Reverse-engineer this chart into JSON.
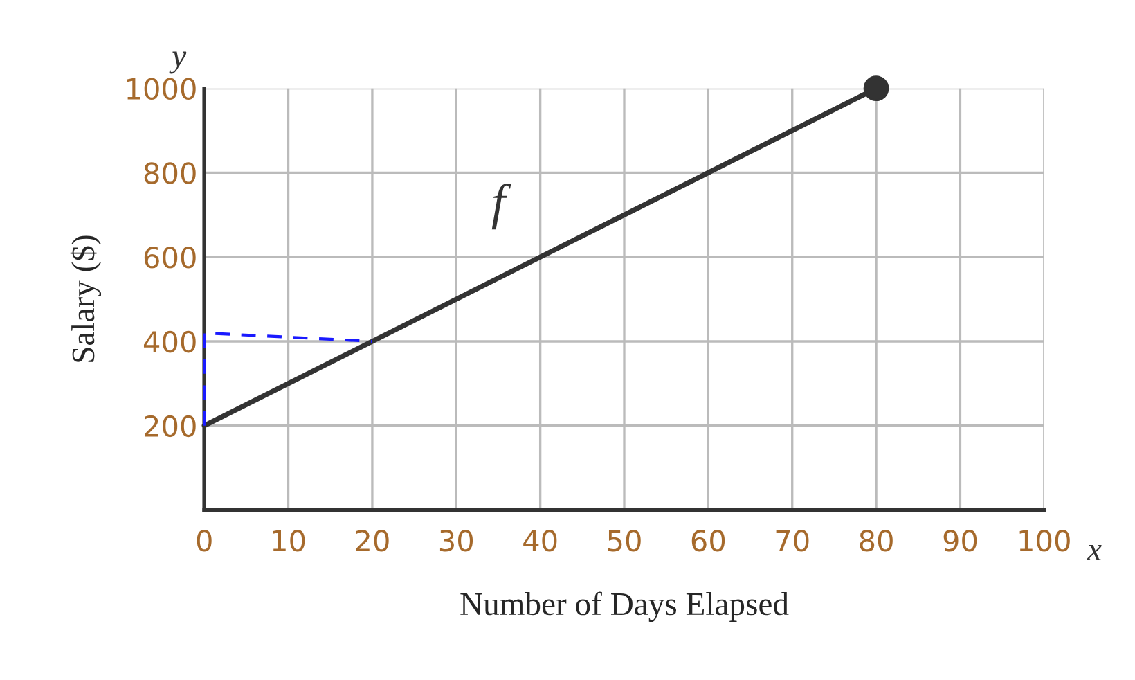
{
  "chart_data": {
    "type": "line",
    "xlabel": "Number of Days Elapsed",
    "ylabel": "Salary ($)",
    "x": [
      0,
      80
    ],
    "series": [
      {
        "color": "#333333",
        "values": [
          200,
          1000
        ],
        "marker": "none",
        "line_style": "solid"
      },
      {
        "color": "#333333",
        "x": [
          80
        ],
        "values": [
          1000
        ],
        "type": "scatter",
        "marker": "circle"
      },
      {
        "color": "#1a1aff",
        "x": [
          0,
          0,
          20
        ],
        "values": [
          200,
          420,
          400
        ],
        "marker": "none",
        "line_style": "dashed"
      }
    ],
    "xlim": [
      0,
      100
    ],
    "ylim": [
      0,
      1000
    ],
    "xticks": [
      0,
      10,
      20,
      30,
      40,
      50,
      60,
      70,
      80,
      90,
      100
    ],
    "yticks": [
      200,
      400,
      600,
      800,
      1000
    ],
    "grid": true,
    "annotations": [
      "y",
      "x",
      "f"
    ]
  }
}
